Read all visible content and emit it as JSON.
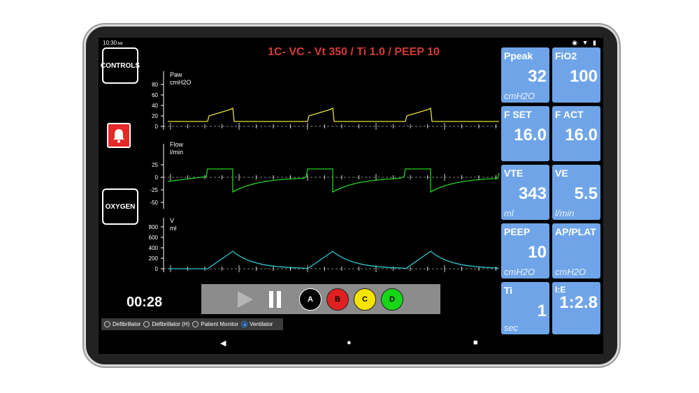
{
  "status": {
    "time": "10:30",
    "ampm": "AM",
    "icons": [
      "link-icon",
      "wifi-icon",
      "battery-icon"
    ]
  },
  "title": "1C- VC - Vt 350 / Ti 1.0 / PEEP 10",
  "buttons": {
    "controls": "CONTROLS",
    "oxygen": "OXYGEN"
  },
  "timer": "00:28",
  "playback": {
    "a": "A",
    "b": "B",
    "c": "C",
    "d": "D"
  },
  "modes": {
    "m1": "Defibrillator",
    "m2": "Defibrillator (H)",
    "m3": "Patient Monitor",
    "m4": "Ventilator",
    "selected": "Ventilator"
  },
  "waves": {
    "paw": {
      "label": "Paw",
      "unit": "cmH2O",
      "ticks": [
        "80",
        "60",
        "40",
        "20",
        "0"
      ],
      "color": "#e8e13a"
    },
    "flow": {
      "label": "Flow",
      "unit": "l/min",
      "ticks": [
        "25",
        "0",
        "-25",
        "-50"
      ],
      "color": "#1fd21f"
    },
    "vol": {
      "label": "V",
      "unit": "ml",
      "ticks": [
        "800",
        "600",
        "400",
        "200",
        "0"
      ],
      "color": "#2fc8d0"
    }
  },
  "tiles": {
    "ppeak": {
      "label": "Ppeak",
      "value": "32",
      "unit": "cmH2O"
    },
    "fio2": {
      "label": "FiO2",
      "value": "100",
      "unit": ""
    },
    "fset": {
      "label": "F SET",
      "value": "16.0",
      "unit": ""
    },
    "fact": {
      "label": "F ACT",
      "value": "16.0",
      "unit": ""
    },
    "vte": {
      "label": "VTE",
      "value": "343",
      "unit": "ml"
    },
    "ve": {
      "label": "VE",
      "value": "5.5",
      "unit": "l/min"
    },
    "peep": {
      "label": "PEEP",
      "value": "10",
      "unit": "cmH2O"
    },
    "applat": {
      "label": "AP/PLAT",
      "value": "",
      "unit": "cmH2O"
    },
    "ti": {
      "label": "Ti",
      "value": "1",
      "unit": "sec"
    },
    "ie": {
      "label": "I:E",
      "value": "1:2.8",
      "unit": ""
    }
  },
  "colors": {
    "alarm": "#e52929",
    "tile": "#6fa5e8",
    "title": "#d43b35",
    "b": "#e02020",
    "c": "#f5e400",
    "d": "#16d616"
  }
}
